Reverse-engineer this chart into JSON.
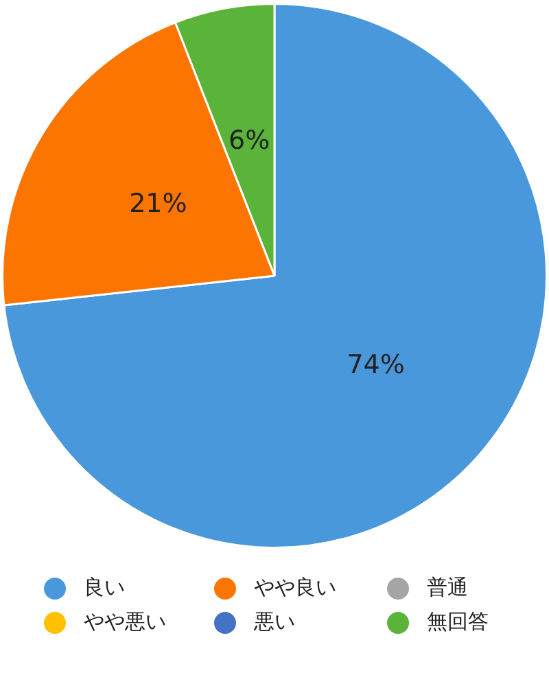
{
  "chart_data": {
    "type": "pie",
    "categories": [
      "良い",
      "やや良い",
      "普通",
      "やや悪い",
      "悪い",
      "無回答"
    ],
    "values": [
      74,
      21,
      0,
      0,
      0,
      6
    ],
    "colors": [
      "#4a98dc",
      "#fb7500",
      "#a5a5a5",
      "#ffc000",
      "#4472c4",
      "#5bb43a"
    ],
    "value_labels": [
      "74%",
      "21%",
      null,
      null,
      null,
      "6%"
    ],
    "legend": "bottom"
  }
}
